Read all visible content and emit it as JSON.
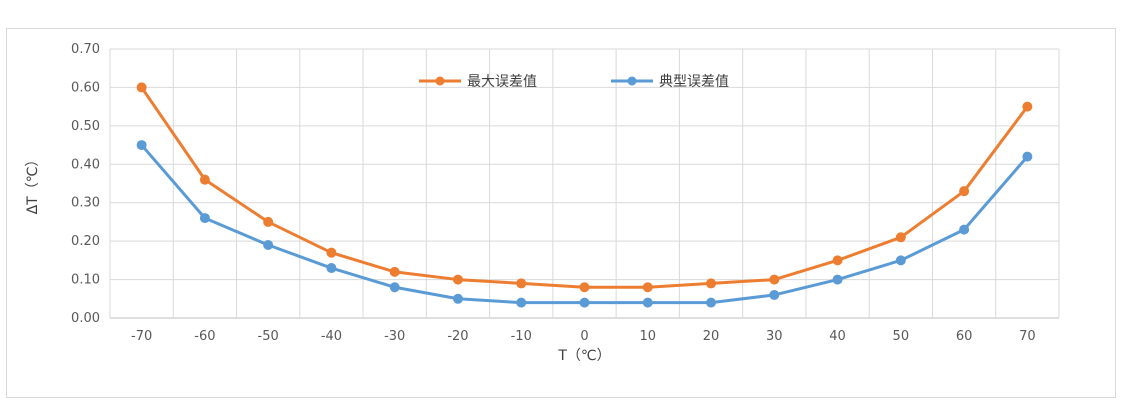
{
  "chart_data": {
    "type": "line",
    "title": "",
    "xlabel": "T（℃）",
    "ylabel": "ΔT（℃）",
    "x": [
      -70,
      -60,
      -50,
      -40,
      -30,
      -20,
      -10,
      0,
      10,
      20,
      30,
      40,
      50,
      60,
      70
    ],
    "x_tick_labels": [
      "-70",
      "-60",
      "-50",
      "-40",
      "-30",
      "-20",
      "-10",
      "0",
      "10",
      "20",
      "30",
      "40",
      "50",
      "60",
      "70"
    ],
    "y_ticks": [
      0,
      0.1,
      0.2,
      0.3,
      0.4,
      0.5,
      0.6,
      0.7
    ],
    "y_tick_labels": [
      "0.00",
      "0.10",
      "0.20",
      "0.30",
      "0.40",
      "0.50",
      "0.60",
      "0.70"
    ],
    "ylim": [
      0,
      0.7
    ],
    "grid": true,
    "legend_position": "top-center",
    "series": [
      {
        "name": "最大误差值",
        "color": "#ED7D31",
        "values": [
          0.6,
          0.36,
          0.25,
          0.17,
          0.12,
          0.1,
          0.09,
          0.08,
          0.08,
          0.09,
          0.1,
          0.15,
          0.21,
          0.33,
          0.55
        ]
      },
      {
        "name": "典型误差值",
        "color": "#5B9BD5",
        "values": [
          0.45,
          0.26,
          0.19,
          0.13,
          0.08,
          0.05,
          0.04,
          0.04,
          0.04,
          0.04,
          0.06,
          0.1,
          0.15,
          0.23,
          0.42
        ]
      }
    ]
  }
}
